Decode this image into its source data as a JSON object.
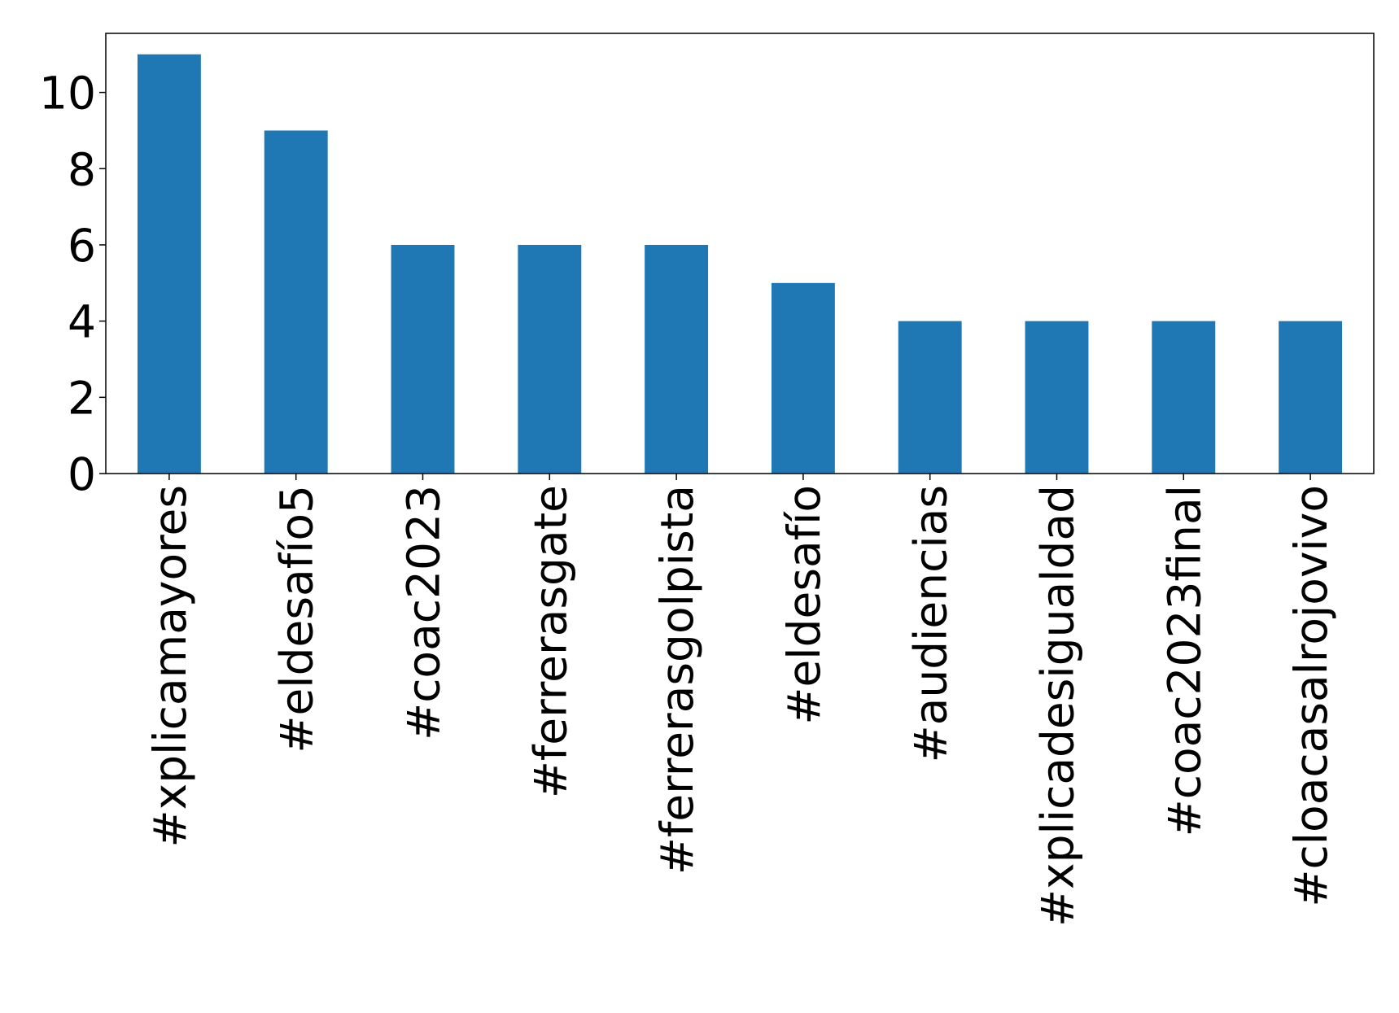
{
  "chart_data": {
    "type": "bar",
    "categories": [
      "#xplicamayores",
      "#eldesafío5",
      "#coac2023",
      "#ferrerasgate",
      "#ferrerasgolpista",
      "#eldesafío",
      "#audiencias",
      "#xplicadesigualdad",
      "#coac2023final",
      "#cloacasalrojovivo"
    ],
    "values": [
      11,
      9,
      6,
      6,
      6,
      5,
      4,
      4,
      4,
      4
    ],
    "color": "#1f77b4",
    "ylim": [
      0,
      11.55
    ],
    "yticks": [
      0,
      2,
      4,
      6,
      8,
      10
    ],
    "grid": false
  }
}
